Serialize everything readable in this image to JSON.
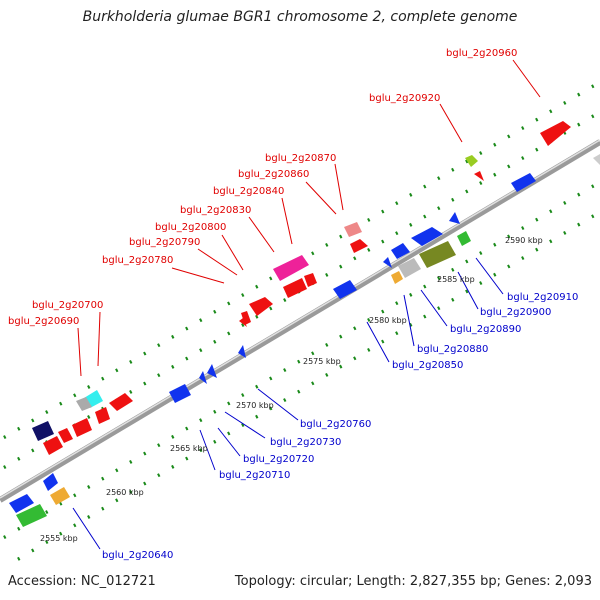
{
  "title": "Burkholderia glumae BGR1 chromosome 2, complete genome",
  "footer": {
    "accession": "Accession: NC_012721",
    "summary": "Topology: circular; Length: 2,827,355 bp; Genes: 2,093"
  },
  "colors": {
    "plus_label": "#e00000",
    "minus_label": "#0000cc",
    "axis": "#808080",
    "tick": "#1a8a1a",
    "plus_gene": "#ee1111",
    "minus_gene": "#1133ee"
  },
  "scale_labels": [
    "2555 kbp",
    "2560 kbp",
    "2565 kbp",
    "2570 kbp",
    "2575 kbp",
    "2580 kbp",
    "2585 kbp",
    "2590 kbp"
  ],
  "upper_gene_labels": [
    "bglu_2g20960",
    "bglu_2g20920",
    "bglu_2g20870",
    "bglu_2g20860",
    "bglu_2g20840",
    "bglu_2g20830",
    "bglu_2g20800",
    "bglu_2g20790",
    "bglu_2g20780",
    "bglu_2g20700",
    "bglu_2g20690"
  ],
  "lower_gene_labels": [
    "bglu_2g20910",
    "bglu_2g20900",
    "bglu_2g20890",
    "bglu_2g20880",
    "bglu_2g20850",
    "bglu_2g20760",
    "bglu_2g20730",
    "bglu_2g20720",
    "bglu_2g20710",
    "bglu_2g20640"
  ]
}
